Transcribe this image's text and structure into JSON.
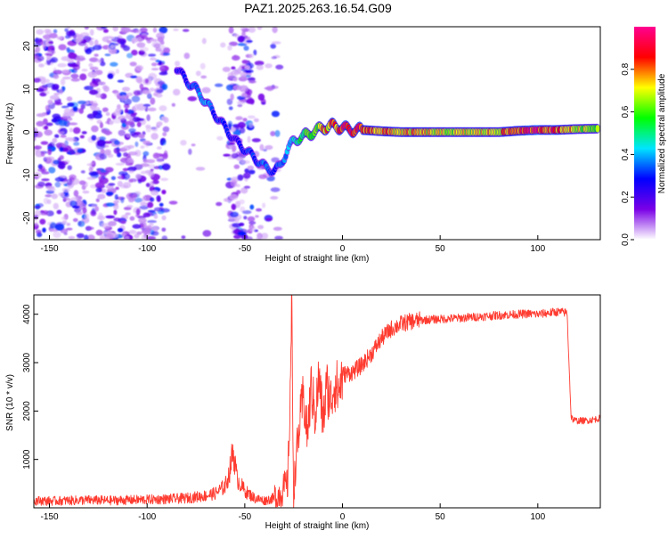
{
  "title": "PAZ1.2025.263.16.54.G09",
  "chart_data": [
    {
      "type": "heatmap",
      "name": "spectrogram",
      "xlabel": "Height of straight line (km)",
      "ylabel": "Frequency (Hz)",
      "xlim": [
        -158,
        132
      ],
      "ylim": [
        -25,
        24.5
      ],
      "xticks": [
        "-150",
        "-100",
        "-50",
        "0",
        "50",
        "100"
      ],
      "xtick_values": [
        -150,
        -100,
        -50,
        0,
        50,
        100
      ],
      "yticks": [
        "20",
        "10",
        "0",
        "-10",
        "-20"
      ],
      "ytick_values": [
        20,
        10,
        0,
        -10,
        -20
      ],
      "colorbar": {
        "label": "Normalized spectral amplitude",
        "range": [
          0,
          1
        ],
        "ticks": [
          "0.0",
          "0.2",
          "0.4",
          "0.6",
          "0.8"
        ],
        "tick_values": [
          0.0,
          0.2,
          0.4,
          0.6,
          0.8
        ],
        "colors": [
          "#ffffff",
          "#7a00e6",
          "#0000ff",
          "#00e5ff",
          "#00ff00",
          "#ffff00",
          "#ff0000",
          "#ff0090"
        ]
      },
      "ridge": {
        "x": [
          -85,
          -80,
          -75,
          -70,
          -65,
          -60,
          -55,
          -50,
          -45,
          -40,
          -35,
          -32,
          -28,
          -25,
          -20,
          -15,
          -10,
          -5,
          0,
          5,
          10,
          20,
          30,
          40,
          50,
          60,
          70,
          80,
          90,
          100,
          110,
          120,
          130
        ],
        "y": [
          15,
          12,
          10,
          7,
          4,
          1,
          -2,
          -4,
          -6,
          -8,
          -9,
          -8,
          -4,
          -2,
          -1,
          0,
          1,
          1.5,
          1,
          0.5,
          0.5,
          0.2,
          0,
          0,
          0,
          0,
          0,
          0,
          0.3,
          0.5,
          0.5,
          0.7,
          0.8
        ],
        "amplitude": [
          0.25,
          0.3,
          0.35,
          0.4,
          0.3,
          0.3,
          0.25,
          0.3,
          0.3,
          0.35,
          0.3,
          0.35,
          0.4,
          0.45,
          0.55,
          0.65,
          0.75,
          0.8,
          0.85,
          0.9,
          0.85,
          0.8,
          0.75,
          0.75,
          0.7,
          0.7,
          0.72,
          0.75,
          0.85,
          0.9,
          0.85,
          0.7,
          0.65
        ]
      }
    },
    {
      "type": "line",
      "name": "snr",
      "xlabel": "Height of straight line (km)",
      "ylabel": "SNR (10 * v/v)",
      "xlim": [
        -158,
        132
      ],
      "ylim": [
        0,
        4400
      ],
      "xticks": [
        "-150",
        "-100",
        "-50",
        "0",
        "50",
        "100"
      ],
      "xtick_values": [
        -150,
        -100,
        -50,
        0,
        50,
        100
      ],
      "yticks": [
        "1000",
        "2000",
        "3000",
        "4000"
      ],
      "ytick_values": [
        1000,
        2000,
        3000,
        4000
      ],
      "color": "#ff3b30",
      "series": [
        {
          "name": "SNR",
          "x": [
            -158,
            -150,
            -140,
            -130,
            -120,
            -110,
            -100,
            -90,
            -80,
            -70,
            -65,
            -60,
            -58,
            -56,
            -54,
            -50,
            -45,
            -40,
            -35,
            -32,
            -30,
            -28,
            -27,
            -26,
            -25,
            -24,
            -22,
            -20,
            -18,
            -16,
            -14,
            -12,
            -10,
            -8,
            -6,
            -4,
            -2,
            0,
            5,
            10,
            15,
            20,
            25,
            30,
            35,
            40,
            50,
            60,
            70,
            80,
            90,
            95,
            100,
            110,
            115,
            116,
            117,
            118,
            120,
            125,
            132
          ],
          "y": [
            150,
            140,
            150,
            160,
            150,
            160,
            170,
            180,
            200,
            250,
            300,
            450,
            700,
            1200,
            600,
            350,
            200,
            150,
            200,
            300,
            400,
            500,
            2000,
            4200,
            300,
            900,
            1700,
            2300,
            1500,
            2500,
            1900,
            2700,
            1800,
            2500,
            2200,
            2600,
            2400,
            2750,
            2800,
            2950,
            3200,
            3500,
            3700,
            3800,
            3850,
            3880,
            3900,
            3920,
            3950,
            3980,
            4000,
            4010,
            4000,
            4050,
            4030,
            3000,
            1900,
            1820,
            1800,
            1800,
            1850
          ]
        }
      ]
    }
  ]
}
